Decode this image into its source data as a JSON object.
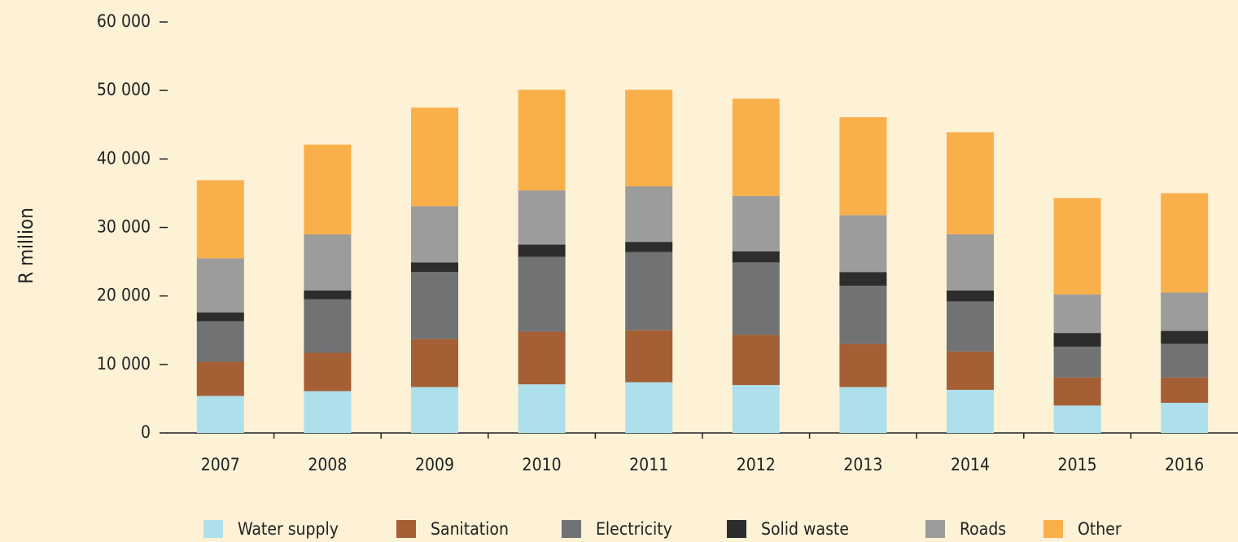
{
  "chart_data": {
    "type": "stacked_bar",
    "y_label": "R million",
    "categories": [
      "2007",
      "2008",
      "2009",
      "2010",
      "2011",
      "2012",
      "2013",
      "2014",
      "2015",
      "2016"
    ],
    "series": [
      {
        "name": "Water supply",
        "color": "#aee0ec",
        "values": [
          5400,
          6100,
          6700,
          7100,
          7400,
          7000,
          6700,
          6300,
          4000,
          4400
        ]
      },
      {
        "name": "Sanitation",
        "color": "#a45f34",
        "values": [
          5000,
          5600,
          7000,
          7700,
          7600,
          7300,
          6300,
          5600,
          4100,
          3700
        ]
      },
      {
        "name": "Electricity",
        "color": "#717274",
        "values": [
          5900,
          7800,
          9800,
          10900,
          11400,
          10600,
          8500,
          7300,
          4500,
          4900
        ]
      },
      {
        "name": "Solid waste",
        "color": "#2d2d2d",
        "values": [
          1300,
          1300,
          1400,
          1800,
          1500,
          1600,
          2000,
          1600,
          2000,
          1900
        ]
      },
      {
        "name": "Roads",
        "color": "#9c9c9c",
        "values": [
          7900,
          8200,
          8200,
          7900,
          8100,
          8100,
          8300,
          8200,
          5600,
          5600
        ]
      },
      {
        "name": "Other",
        "color": "#f9b04b",
        "values": [
          11400,
          13100,
          14400,
          14700,
          14100,
          14200,
          14300,
          14900,
          14100,
          14500
        ]
      }
    ],
    "ylim": [
      0,
      60000
    ],
    "yticks": [
      0,
      {
        "value": 10000,
        "label": "10 000"
      },
      {
        "value": 20000,
        "label": "20 000"
      },
      {
        "value": 30000,
        "label": "30 000"
      },
      {
        "value": 40000,
        "label": "40 000"
      },
      {
        "value": 50000,
        "label": "50 000"
      },
      {
        "value": 60000,
        "label": "60 000"
      }
    ],
    "grid": false,
    "legend": "bottom"
  }
}
